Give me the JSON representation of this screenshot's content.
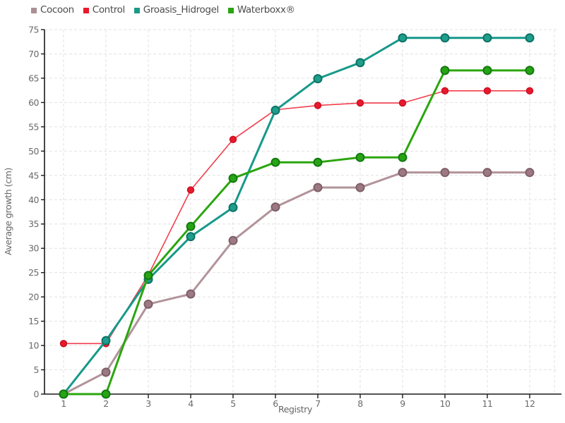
{
  "chart_data": {
    "type": "line",
    "title": "",
    "xlabel": "Registry",
    "ylabel": "Average growth (cm)",
    "x": [
      1,
      2,
      3,
      4,
      5,
      6,
      7,
      8,
      9,
      10,
      11,
      12
    ],
    "xlim": [
      1,
      12
    ],
    "ylim": [
      0,
      75
    ],
    "ytick_step": 5,
    "grid": true,
    "grid_color": "#e2e2e2",
    "axis_color": "#1a1a1a",
    "background": "#ffffff",
    "legend_position": "top-left",
    "series": [
      {
        "name": "Cocoon",
        "color": "#ab8f94",
        "line_color": "#b2939a",
        "dot_fill": "#9d7984",
        "dot_stroke": "#7e5f69",
        "line_width": 3,
        "dot_radius": 5.5,
        "values": [
          0,
          4.5,
          18.5,
          20.6,
          31.6,
          38.5,
          42.5,
          42.5,
          45.6,
          45.6,
          45.6,
          45.6
        ]
      },
      {
        "name": "Control",
        "color": "#e8192c",
        "line_color": "#f23d4c",
        "dot_fill": "#e8192c",
        "dot_stroke": "#c90e20",
        "line_width": 1.6,
        "dot_radius": 4.5,
        "values": [
          10.4,
          10.4,
          24.5,
          42,
          52.4,
          58.5,
          59.4,
          59.9,
          59.9,
          62.4,
          62.4,
          62.4
        ]
      },
      {
        "name": "Groasis_Hidrogel",
        "color": "#1b9a88",
        "line_color": "#16998a",
        "dot_fill": "#1f9e8c",
        "dot_stroke": "#0e7265",
        "line_width": 3,
        "dot_radius": 5.5,
        "values": [
          0,
          11,
          23.6,
          32.4,
          38.4,
          58.4,
          64.9,
          68.2,
          73.3,
          73.3,
          73.3,
          73.3
        ]
      },
      {
        "name": "Waterboxx®",
        "color": "#2aa410",
        "line_color": "#2aa60e",
        "dot_fill": "#27a415",
        "dot_stroke": "#13790f",
        "line_width": 3,
        "dot_radius": 5.5,
        "values": [
          0,
          0,
          24.4,
          34.5,
          44.4,
          47.7,
          47.7,
          48.7,
          48.7,
          66.6,
          66.6,
          66.6
        ]
      }
    ]
  }
}
